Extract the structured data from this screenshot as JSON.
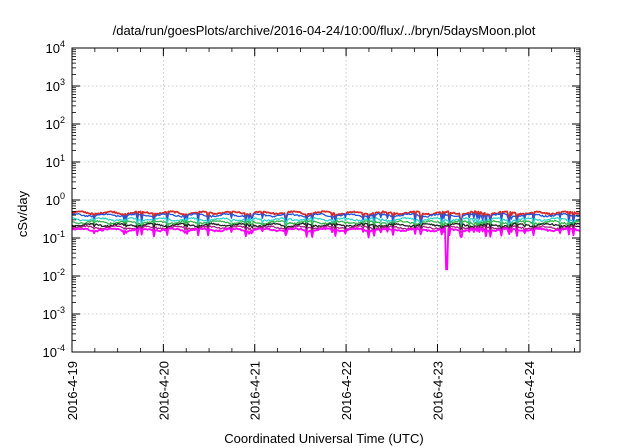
{
  "chart_data": {
    "type": "line",
    "title": "/data/run/goesPlots/archive/2016-04-24/10:00/flux/../bryn/5daysMoon.plot",
    "xlabel": "Coordinated Universal Time (UTC)",
    "ylabel": "cSv/day",
    "yscale": "log",
    "ylim_exponents": [
      -4,
      4
    ],
    "xlim_days": [
      0,
      5.56
    ],
    "grid": true,
    "x_tick_labels": [
      "2016-4-19",
      "2016-4-20",
      "2016-4-21",
      "2016-4-22",
      "2016-4-23",
      "2016-4-24"
    ],
    "y_tick_labels": [
      {
        "base": "10",
        "exp": "-4"
      },
      {
        "base": "10",
        "exp": "-3"
      },
      {
        "base": "10",
        "exp": "-2"
      },
      {
        "base": "10",
        "exp": "-1"
      },
      {
        "base": "10",
        "exp": "0"
      },
      {
        "base": "10",
        "exp": "1"
      },
      {
        "base": "10",
        "exp": "2"
      },
      {
        "base": "10",
        "exp": "3"
      },
      {
        "base": "10",
        "exp": "4"
      }
    ],
    "series": [
      {
        "color": "#d42a2a",
        "base": 0.46,
        "dip": 0.62
      },
      {
        "color": "#2255dd",
        "base": 0.4,
        "dip": 0.62
      },
      {
        "color": "#2ed6c8",
        "base": 0.31,
        "dip": 0.68
      },
      {
        "color": "#33b54a",
        "base": 0.26,
        "dip": 0.72
      },
      {
        "color": "#222222",
        "base": 0.22,
        "dip": 0.76
      },
      {
        "color": "#aa2288",
        "base": 0.19,
        "dip": 0.78
      },
      {
        "color": "#ff00ff",
        "base": 0.165,
        "dip": 0.7
      }
    ],
    "spike": {
      "x_day": 4.1,
      "value": 0.015
    }
  }
}
